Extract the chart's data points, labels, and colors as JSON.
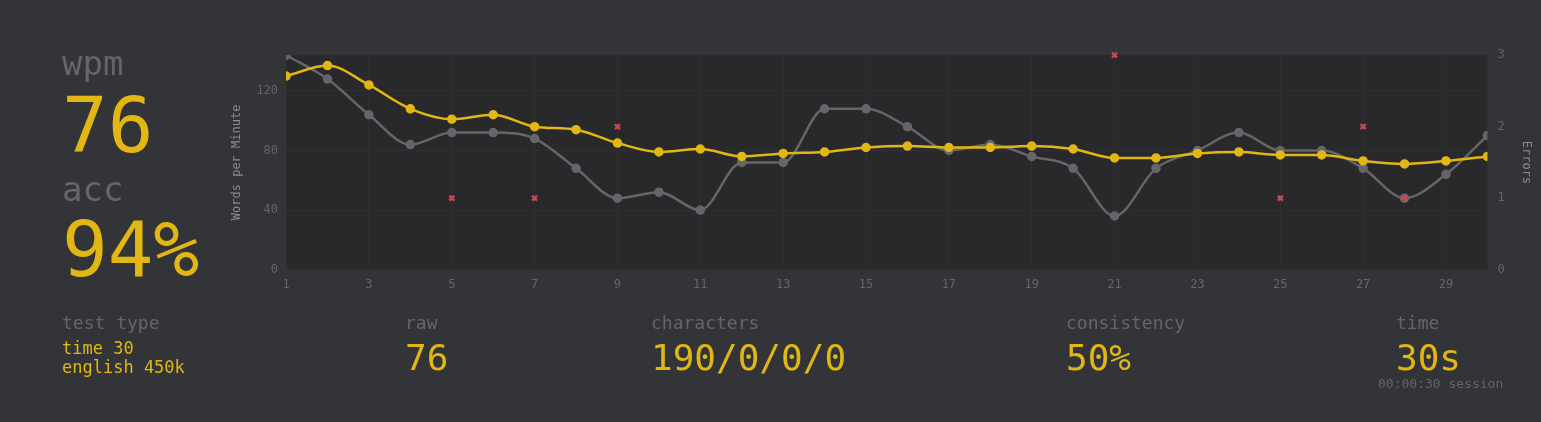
{
  "chart_data": [
    {
      "type": "other",
      "annotations": [
        "wpm",
        "76",
        "acc",
        "94%"
      ]
    },
    {
      "type": "line",
      "ylabel": "Words per Minute",
      "y2label": "Errors",
      "x": [
        1,
        2,
        3,
        4,
        5,
        6,
        7,
        8,
        9,
        10,
        11,
        12,
        13,
        14,
        15,
        16,
        17,
        18,
        19,
        20,
        21,
        22,
        23,
        24,
        25,
        26,
        27,
        28,
        29,
        30
      ],
      "series": [
        {
          "type": "line",
          "color": "#646669",
          "marker": "circle",
          "values": [
            144,
            128,
            104,
            84,
            92,
            92,
            88,
            68,
            48,
            52,
            40,
            72,
            72,
            108,
            108,
            96,
            80,
            84,
            76,
            68,
            36,
            68,
            80,
            92,
            80,
            80,
            68,
            48,
            64,
            90
          ]
        },
        {
          "type": "line",
          "color": "#e2b714",
          "marker": "circle",
          "values": [
            130,
            137,
            124,
            108,
            101,
            104,
            96,
            94,
            85,
            79,
            81,
            76,
            78,
            79,
            82,
            83,
            82,
            82,
            83,
            81,
            75,
            75,
            78,
            79,
            77,
            77,
            73,
            71,
            73,
            76
          ]
        },
        {
          "type": "scatter",
          "axis": "y2",
          "color": "#ca4754",
          "marker": "cross",
          "values": [
            null,
            null,
            null,
            null,
            1,
            null,
            1,
            null,
            2,
            null,
            null,
            null,
            null,
            null,
            null,
            null,
            null,
            null,
            null,
            null,
            3,
            null,
            null,
            null,
            1,
            null,
            2,
            1,
            null,
            null
          ]
        }
      ],
      "xlim": [
        1,
        30
      ],
      "xticks": [
        1,
        3,
        5,
        7,
        9,
        11,
        13,
        15,
        17,
        19,
        21,
        23,
        25,
        27,
        29
      ],
      "ylim": [
        0,
        144
      ],
      "yticks": [
        0,
        40,
        80,
        120
      ],
      "y2lim": [
        0,
        3
      ],
      "y2ticks": [
        0,
        1,
        2,
        3
      ],
      "grid": true,
      "legend": false
    },
    {
      "type": "other",
      "annotations": [
        "test type",
        "time 30",
        "english 450k",
        "raw",
        "76",
        "characters",
        "190/0/0/0",
        "consistency",
        "50%",
        "time",
        "30s",
        "00:00:30 session"
      ]
    }
  ]
}
